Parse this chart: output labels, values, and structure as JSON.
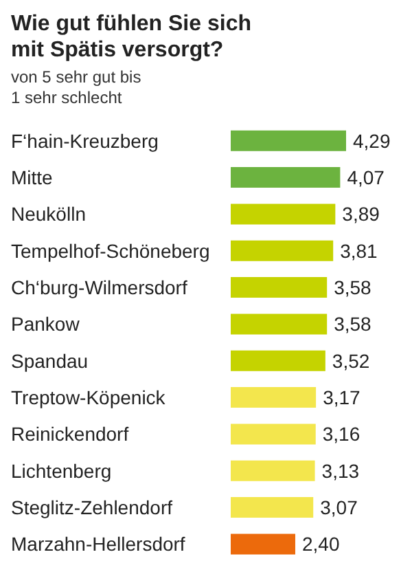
{
  "chart_data": {
    "type": "bar",
    "orientation": "horizontal",
    "title": "Wie gut fühlen Sie sich mit Spätis versorgt?",
    "subtitle": "von 5 sehr gut bis 1 sehr schlecht",
    "categories": [
      "F‘hain-Kreuzberg",
      "Mitte",
      "Neukölln",
      "Tempelhof-Schöneberg",
      "Ch‘burg-Wilmersdorf",
      "Pankow",
      "Spandau",
      "Treptow-Köpenick",
      "Reinickendorf",
      "Lichtenberg",
      "Steglitz-Zehlendorf",
      "Marzahn-Hellersdorf"
    ],
    "values": [
      4.29,
      4.07,
      3.89,
      3.81,
      3.58,
      3.58,
      3.52,
      3.17,
      3.16,
      3.13,
      3.07,
      2.4
    ],
    "colors": [
      "#6cb33f",
      "#6cb33f",
      "#c5d300",
      "#c5d300",
      "#c5d300",
      "#c5d300",
      "#c5d300",
      "#f3e64d",
      "#f3e64d",
      "#f3e64d",
      "#f3e64d",
      "#ec6a0c"
    ],
    "value_labels": [
      "4,29",
      "4,07",
      "3,89",
      "3,81",
      "3,58",
      "3,58",
      "3,52",
      "3,17",
      "3,16",
      "3,13",
      "3,07",
      "2,40"
    ]
  }
}
